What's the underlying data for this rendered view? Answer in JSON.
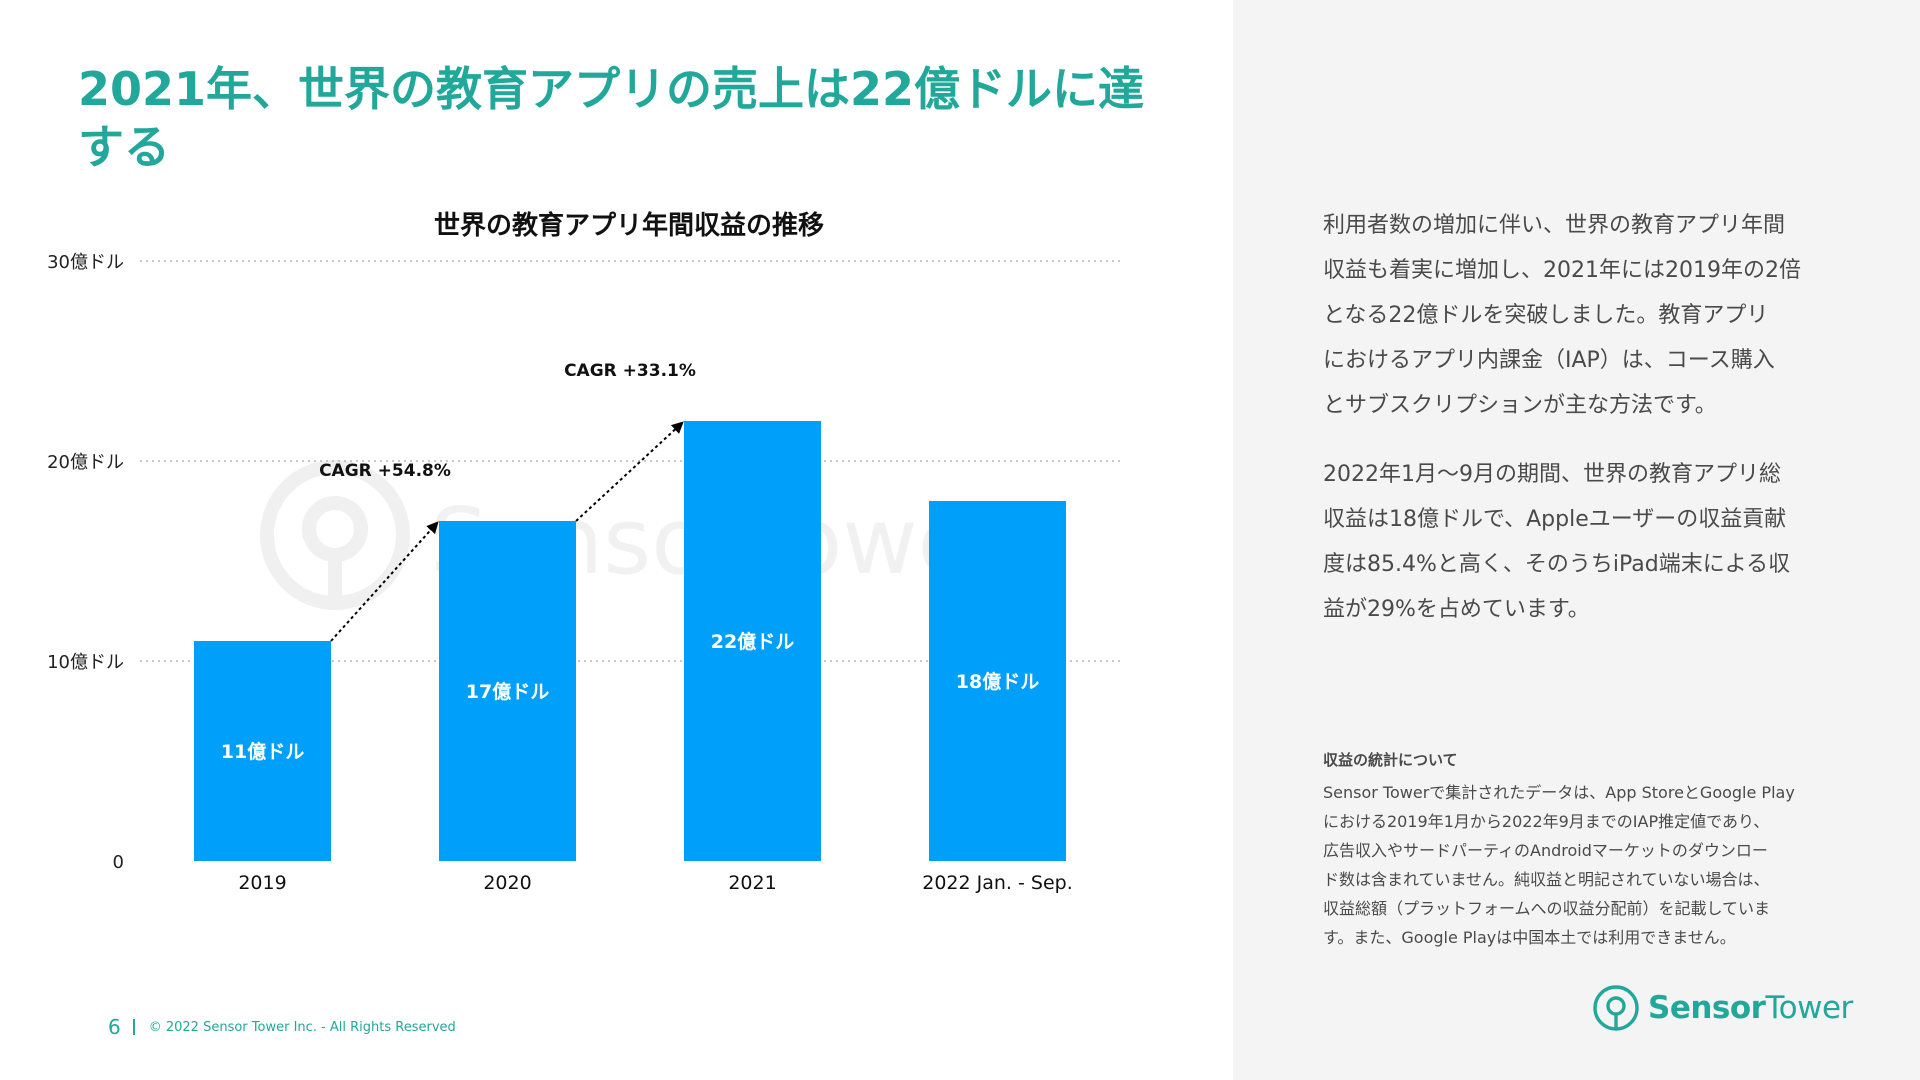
{
  "slide": {
    "title": "2021年、世界の教育アプリの売上は22億ドルに達する",
    "page_number": "6",
    "copyright": "© 2022 Sensor Tower Inc. - All Rights Reserved",
    "brand_name_part1": "Sensor",
    "brand_name_part2": "Tower",
    "watermark": "SensorTower"
  },
  "colors": {
    "accent": "#21a89a",
    "bar": "#009ffa",
    "grid": "#b5b5b5",
    "side_panel": "#f4f4f4",
    "body_text": "#4a4a4a"
  },
  "chart_data": {
    "type": "bar",
    "title": "世界の教育アプリ年間収益の推移",
    "categories": [
      "2019",
      "2020",
      "2021",
      "2022 Jan. - Sep."
    ],
    "values": [
      11,
      17,
      22,
      18
    ],
    "value_labels": [
      "11億ドル",
      "17億ドル",
      "22億ドル",
      "18億ドル"
    ],
    "unit": "億ドル",
    "ylim": [
      0,
      30
    ],
    "yticks": [
      0,
      10,
      20,
      30
    ],
    "ytick_labels": [
      "0",
      "10億ドル",
      "20億ドル",
      "30億ドル"
    ],
    "xlabel": "",
    "ylabel": "",
    "grid": true,
    "annotations": [
      {
        "text": "CAGR +54.8%",
        "from": "2019",
        "to": "2020"
      },
      {
        "text": "CAGR +33.1%",
        "from": "2020",
        "to": "2021"
      }
    ]
  },
  "description": {
    "paragraph1_lines": [
      "利用者数の増加に伴い、世界の教育アプリ年間",
      "収益も着実に増加し、2021年には2019年の2倍",
      "となる22億ドルを突破しました。教育アプリ",
      "におけるアプリ内課金（IAP）は、コース購入",
      "とサブスクリプションが主な方法です。"
    ],
    "paragraph2_lines": [
      "2022年1月〜9月の期間、世界の教育アプリ総",
      "収益は18億ドルで、Appleユーザーの収益貢献",
      "度は85.4%と高く、そのうちiPad端末による収",
      "益が29%を占めています。"
    ]
  },
  "note": {
    "heading": "収益の統計について",
    "lines": [
      "Sensor Towerで集計されたデータは、App StoreとGoogle Play",
      "における2019年1月から2022年9月までのIAP推定値であり、",
      "広告収入やサードパーティのAndroidマーケットのダウンロー",
      "ド数は含まれていません。純収益と明記されていない場合は、",
      "収益総額（プラットフォームへの収益分配前）を記載していま",
      "す。また、Google Playは中国本土では利用できません。"
    ]
  }
}
